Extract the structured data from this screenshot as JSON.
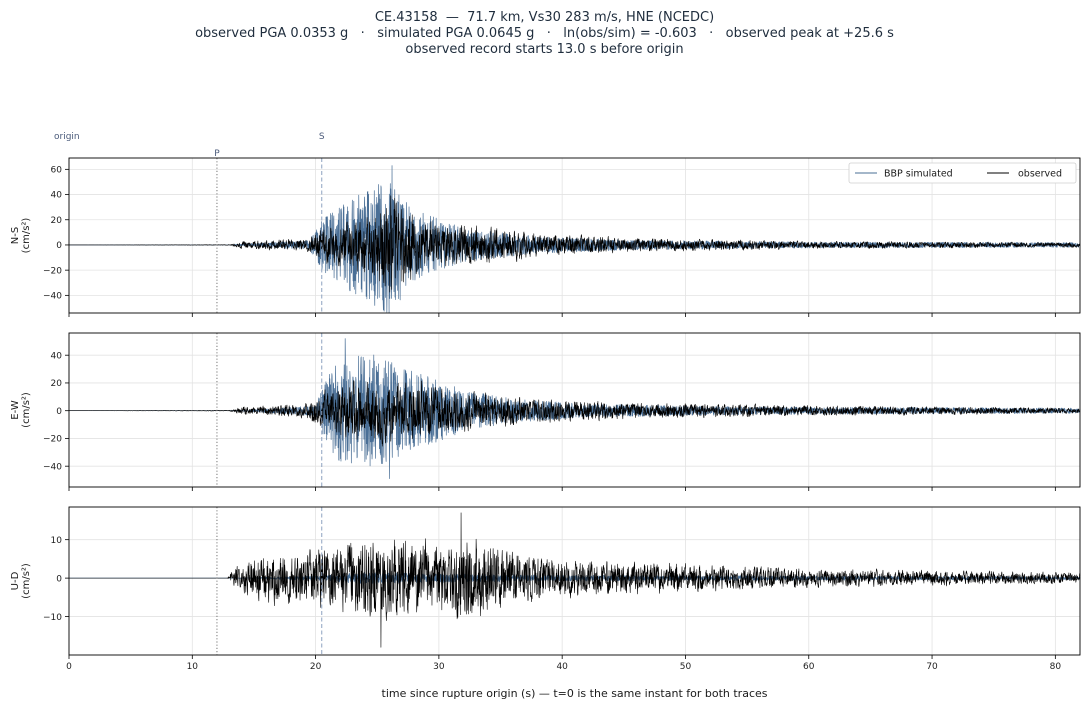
{
  "figure": {
    "title_lines": [
      "CE.43158  —  71.7 km, Vs30 283 m/s, HNE (NCEDC)",
      "observed PGA 0.0353 g   ·   simulated PGA 0.0645 g   ·   ln(obs/sim) = -0.603   ·   observed peak at +25.6 s",
      "observed record starts 13.0 s before origin"
    ],
    "xlabel": "time since rupture origin (s)   —   t=0 is the same instant for both traces",
    "markers": {
      "origin": {
        "label": "origin",
        "t": 0
      },
      "P": {
        "label": "P",
        "t": 12.0
      },
      "S": {
        "label": "S",
        "t": 20.5
      }
    },
    "legend": {
      "placement": "top-right",
      "entries": [
        {
          "label": "BBP simulated",
          "color": "#4a6f96"
        },
        {
          "label": "observed",
          "color": "#000000"
        }
      ]
    },
    "colors": {
      "simulated": "#4a6f96",
      "observed": "#000000",
      "grid": "#e3e3e3",
      "p_marker": "#777777",
      "s_marker": "#8da2c0"
    }
  },
  "chart_data": [
    {
      "type": "line",
      "ylabel": "N-S\n(cm/s²)",
      "xlim": [
        0,
        82
      ],
      "ylim": [
        -54,
        69
      ],
      "xticks": [
        0,
        10,
        20,
        30,
        40,
        50,
        60,
        70,
        80
      ],
      "yticks": [
        -40,
        -20,
        0,
        20,
        40,
        60
      ],
      "grid": true,
      "show_xticklabels": false,
      "series": [
        {
          "name": "BBP simulated",
          "role": "sim",
          "envelope": [
            [
              0,
              0
            ],
            [
              13,
              0
            ],
            [
              15,
              1.5
            ],
            [
              19.5,
              4
            ],
            [
              20.5,
              22
            ],
            [
              23,
              40
            ],
            [
              26,
              58
            ],
            [
              28,
              30
            ],
            [
              32,
              14
            ],
            [
              38,
              7
            ],
            [
              46,
              4
            ],
            [
              60,
              2.5
            ],
            [
              82,
              2
            ]
          ],
          "peak": {
            "t": 26.2,
            "v": 63
          },
          "trough": {
            "t": 24.8,
            "v": -48
          }
        },
        {
          "name": "observed",
          "role": "obs",
          "envelope": [
            [
              0,
              0
            ],
            [
              13,
              0.3
            ],
            [
              14,
              3
            ],
            [
              19,
              5
            ],
            [
              20.5,
              14
            ],
            [
              24,
              25
            ],
            [
              26.2,
              46
            ],
            [
              29,
              20
            ],
            [
              33,
              16
            ],
            [
              38,
              10
            ],
            [
              45,
              6
            ],
            [
              60,
              3
            ],
            [
              82,
              2
            ]
          ]
        }
      ]
    },
    {
      "type": "line",
      "ylabel": "E-W\n(cm/s²)",
      "xlim": [
        0,
        82
      ],
      "ylim": [
        -55,
        56
      ],
      "xticks": [
        0,
        10,
        20,
        30,
        40,
        50,
        60,
        70,
        80
      ],
      "yticks": [
        -40,
        -20,
        0,
        20,
        40
      ],
      "grid": true,
      "show_xticklabels": false,
      "series": [
        {
          "name": "BBP simulated",
          "role": "sim",
          "envelope": [
            [
              0,
              0
            ],
            [
              13,
              0
            ],
            [
              16,
              1.5
            ],
            [
              20,
              4
            ],
            [
              21,
              28
            ],
            [
              22.5,
              45
            ],
            [
              25,
              42
            ],
            [
              28,
              30
            ],
            [
              32,
              16
            ],
            [
              36,
              9
            ],
            [
              42,
              5
            ],
            [
              55,
              3
            ],
            [
              82,
              2
            ]
          ],
          "peak": {
            "t": 22.4,
            "v": 52
          },
          "trough": {
            "t": 26.0,
            "v": -49
          }
        },
        {
          "name": "observed",
          "role": "obs",
          "envelope": [
            [
              0,
              0
            ],
            [
              13,
              0.3
            ],
            [
              14,
              3
            ],
            [
              19,
              5
            ],
            [
              20.5,
              14
            ],
            [
              23,
              22
            ],
            [
              26,
              25
            ],
            [
              29,
              20
            ],
            [
              33,
              14
            ],
            [
              38,
              9
            ],
            [
              45,
              6
            ],
            [
              60,
              4
            ],
            [
              82,
              2
            ]
          ]
        }
      ]
    },
    {
      "type": "line",
      "ylabel": "U-D\n(cm/s²)",
      "xlim": [
        0,
        82
      ],
      "ylim": [
        -20,
        18.5
      ],
      "xticks": [
        0,
        10,
        20,
        30,
        40,
        50,
        60,
        70,
        80
      ],
      "yticks": [
        -10,
        0,
        10
      ],
      "grid": true,
      "show_xticklabels": true,
      "series": [
        {
          "name": "BBP simulated",
          "role": "sim",
          "envelope": [
            [
              0,
              0
            ],
            [
              13,
              0
            ],
            [
              20,
              0.6
            ],
            [
              24,
              1.6
            ],
            [
              30,
              1.2
            ],
            [
              40,
              0.8
            ],
            [
              82,
              0.4
            ]
          ]
        },
        {
          "name": "observed",
          "role": "obs",
          "envelope": [
            [
              0,
              0
            ],
            [
              12.8,
              0
            ],
            [
              13.5,
              3
            ],
            [
              16,
              7
            ],
            [
              19,
              7
            ],
            [
              22,
              10
            ],
            [
              25,
              11
            ],
            [
              30,
              10
            ],
            [
              33,
              12
            ],
            [
              35,
              8
            ],
            [
              40,
              5
            ],
            [
              50,
              4
            ],
            [
              60,
              2.5
            ],
            [
              82,
              1.5
            ]
          ],
          "peak": {
            "t": 31.8,
            "v": 17
          },
          "trough": {
            "t": 25.3,
            "v": -18
          }
        }
      ]
    }
  ]
}
